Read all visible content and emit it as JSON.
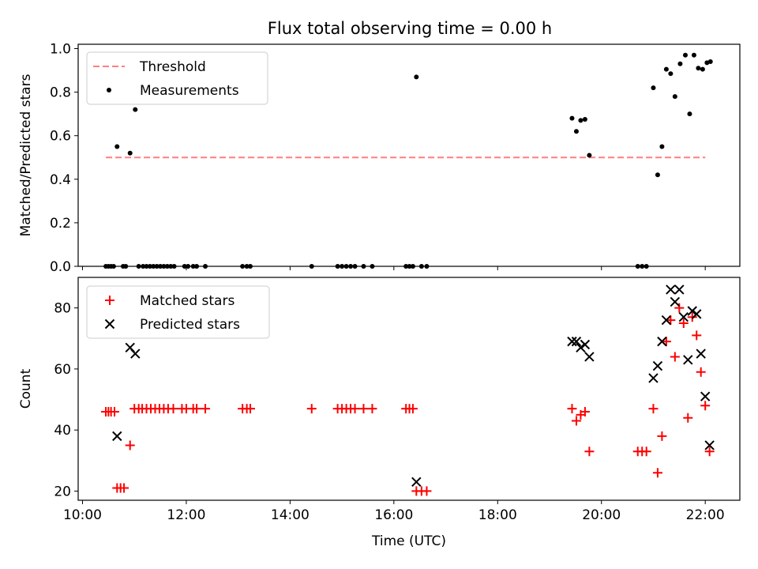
{
  "title": "Flux total observing time = 0.00 h",
  "colors": {
    "threshold": "#ff7f7f",
    "measurements": "#000000",
    "matched": "#ff0000",
    "predicted": "#000000"
  },
  "chart_data": [
    {
      "type": "scatter",
      "ylabel": "Matched/Predicted stars",
      "xlim": [
        "09:55",
        "22:40"
      ],
      "ylim": [
        0,
        1.02
      ],
      "yticks": [
        "0.0",
        "0.2",
        "0.4",
        "0.6",
        "0.8",
        "1.0"
      ],
      "legend_position": "top-left",
      "threshold": {
        "name": "Threshold",
        "value": 0.5,
        "x_range": [
          "10:27",
          "22:00"
        ]
      },
      "series": [
        {
          "name": "Measurements",
          "points": [
            [
              "10:27",
              0
            ],
            [
              "10:30",
              0
            ],
            [
              "10:33",
              0
            ],
            [
              "10:36",
              0
            ],
            [
              "10:40",
              0.55
            ],
            [
              "10:47",
              0
            ],
            [
              "10:50",
              0
            ],
            [
              "10:55",
              0.52
            ],
            [
              "11:01",
              0.72
            ],
            [
              "11:05",
              0
            ],
            [
              "11:10",
              0
            ],
            [
              "11:14",
              0
            ],
            [
              "11:18",
              0
            ],
            [
              "11:22",
              0
            ],
            [
              "11:26",
              0
            ],
            [
              "11:30",
              0
            ],
            [
              "11:34",
              0
            ],
            [
              "11:38",
              0
            ],
            [
              "11:42",
              0
            ],
            [
              "11:46",
              0
            ],
            [
              "11:58",
              0
            ],
            [
              "12:02",
              0
            ],
            [
              "12:08",
              0
            ],
            [
              "12:12",
              0
            ],
            [
              "12:22",
              0
            ],
            [
              "13:05",
              0
            ],
            [
              "13:10",
              0
            ],
            [
              "13:14",
              0
            ],
            [
              "14:25",
              0
            ],
            [
              "14:55",
              0
            ],
            [
              "15:00",
              0
            ],
            [
              "15:05",
              0
            ],
            [
              "15:10",
              0
            ],
            [
              "15:15",
              0
            ],
            [
              "15:25",
              0
            ],
            [
              "15:35",
              0
            ],
            [
              "16:14",
              0
            ],
            [
              "16:18",
              0
            ],
            [
              "16:22",
              0
            ],
            [
              "16:26",
              0.87
            ],
            [
              "16:32",
              0
            ],
            [
              "16:38",
              0
            ],
            [
              "19:26",
              0.68
            ],
            [
              "19:31",
              0.62
            ],
            [
              "19:36",
              0.67
            ],
            [
              "19:41",
              0.675
            ],
            [
              "19:46",
              0.51
            ],
            [
              "20:42",
              0
            ],
            [
              "20:47",
              0
            ],
            [
              "20:52",
              0
            ],
            [
              "21:00",
              0.82
            ],
            [
              "21:05",
              0.42
            ],
            [
              "21:10",
              0.55
            ],
            [
              "21:15",
              0.905
            ],
            [
              "21:20",
              0.885
            ],
            [
              "21:25",
              0.78
            ],
            [
              "21:31",
              0.93
            ],
            [
              "21:37",
              0.97
            ],
            [
              "21:42",
              0.7
            ],
            [
              "21:47",
              0.97
            ],
            [
              "21:52",
              0.91
            ],
            [
              "21:57",
              0.905
            ],
            [
              "22:02",
              0.935
            ],
            [
              "22:06",
              0.94
            ]
          ]
        }
      ]
    },
    {
      "type": "scatter",
      "xlabel": "Time (UTC)",
      "ylabel": "Count",
      "xlim": [
        "09:55",
        "22:40"
      ],
      "ylim": [
        17,
        90
      ],
      "yticks": [
        "20",
        "40",
        "60",
        "80"
      ],
      "xticks": [
        "10:00",
        "12:00",
        "14:00",
        "16:00",
        "18:00",
        "20:00",
        "22:00"
      ],
      "legend_position": "top-left",
      "series": [
        {
          "name": "Matched stars",
          "marker": "plus",
          "points": [
            [
              "10:27",
              46
            ],
            [
              "10:30",
              46
            ],
            [
              "10:33",
              46
            ],
            [
              "10:37",
              46
            ],
            [
              "10:40",
              21
            ],
            [
              "10:44",
              21
            ],
            [
              "10:48",
              21
            ],
            [
              "10:55",
              35
            ],
            [
              "11:00",
              47
            ],
            [
              "11:05",
              47
            ],
            [
              "11:09",
              47
            ],
            [
              "11:14",
              47
            ],
            [
              "11:19",
              47
            ],
            [
              "11:24",
              47
            ],
            [
              "11:29",
              47
            ],
            [
              "11:34",
              47
            ],
            [
              "11:39",
              47
            ],
            [
              "11:45",
              47
            ],
            [
              "11:55",
              47
            ],
            [
              "12:00",
              47
            ],
            [
              "12:08",
              47
            ],
            [
              "12:12",
              47
            ],
            [
              "12:22",
              47
            ],
            [
              "13:05",
              47
            ],
            [
              "13:10",
              47
            ],
            [
              "13:14",
              47
            ],
            [
              "14:25",
              47
            ],
            [
              "14:55",
              47
            ],
            [
              "15:00",
              47
            ],
            [
              "15:05",
              47
            ],
            [
              "15:10",
              47
            ],
            [
              "15:15",
              47
            ],
            [
              "15:25",
              47
            ],
            [
              "15:35",
              47
            ],
            [
              "16:14",
              47
            ],
            [
              "16:18",
              47
            ],
            [
              "16:22",
              47
            ],
            [
              "16:26",
              20
            ],
            [
              "16:32",
              20
            ],
            [
              "16:38",
              20
            ],
            [
              "19:26",
              47
            ],
            [
              "19:31",
              43
            ],
            [
              "19:36",
              45
            ],
            [
              "19:41",
              46
            ],
            [
              "19:46",
              33
            ],
            [
              "20:42",
              33
            ],
            [
              "20:47",
              33
            ],
            [
              "20:52",
              33
            ],
            [
              "21:00",
              47
            ],
            [
              "21:05",
              26
            ],
            [
              "21:10",
              38
            ],
            [
              "21:15",
              69
            ],
            [
              "21:20",
              76
            ],
            [
              "21:25",
              64
            ],
            [
              "21:30",
              80
            ],
            [
              "21:35",
              75
            ],
            [
              "21:40",
              44
            ],
            [
              "21:45",
              77
            ],
            [
              "21:50",
              71
            ],
            [
              "21:55",
              59
            ],
            [
              "22:00",
              48
            ],
            [
              "22:05",
              33
            ]
          ]
        },
        {
          "name": "Predicted stars",
          "marker": "x",
          "points": [
            [
              "10:40",
              38
            ],
            [
              "10:55",
              67
            ],
            [
              "11:01",
              65
            ],
            [
              "16:26",
              23
            ],
            [
              "19:26",
              69
            ],
            [
              "19:31",
              69
            ],
            [
              "19:36",
              67
            ],
            [
              "19:41",
              68
            ],
            [
              "19:46",
              64
            ],
            [
              "21:00",
              57
            ],
            [
              "21:05",
              61
            ],
            [
              "21:10",
              69
            ],
            [
              "21:15",
              76
            ],
            [
              "21:20",
              86
            ],
            [
              "21:25",
              82
            ],
            [
              "21:30",
              86
            ],
            [
              "21:35",
              77
            ],
            [
              "21:40",
              63
            ],
            [
              "21:45",
              79
            ],
            [
              "21:50",
              78
            ],
            [
              "21:55",
              65
            ],
            [
              "22:00",
              51
            ],
            [
              "22:05",
              35
            ]
          ]
        }
      ]
    }
  ]
}
